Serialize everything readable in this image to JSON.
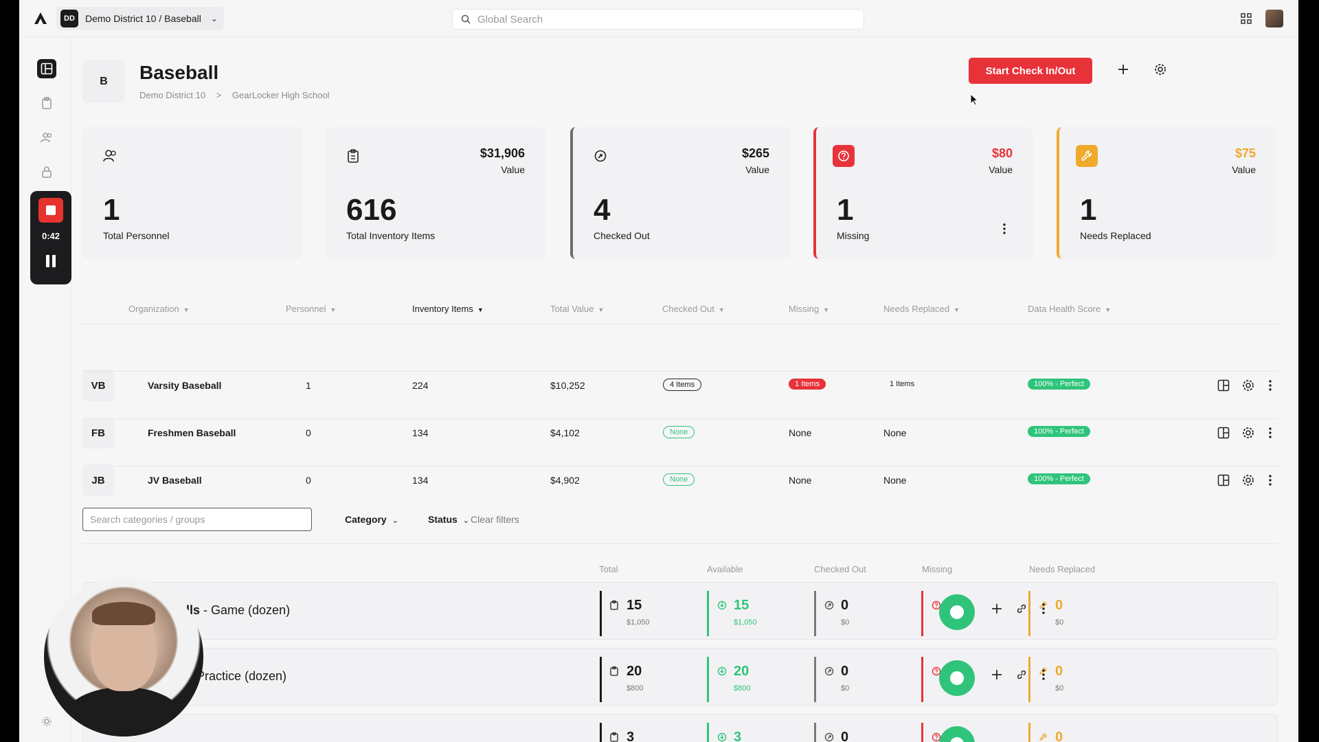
{
  "topbar": {
    "district_badge": "DD",
    "district_label": "Demo District 10 / Baseball",
    "search_placeholder": "Global Search"
  },
  "recorder": {
    "time": "0:42"
  },
  "header": {
    "badge": "B",
    "title": "Baseball",
    "breadcrumb": [
      "Demo District 10",
      ">",
      "GearLocker High School"
    ],
    "start_button": "Start Check In/Out"
  },
  "stats": [
    {
      "number": "1",
      "label": "Total Personnel"
    },
    {
      "number": "616",
      "label": "Total Inventory Items",
      "value": "$31,906",
      "value_label": "Value"
    },
    {
      "number": "4",
      "label": "Checked Out",
      "value": "$265",
      "value_label": "Value"
    },
    {
      "number": "1",
      "label": "Missing",
      "value": "$80",
      "value_label": "Value"
    },
    {
      "number": "1",
      "label": "Needs Replaced",
      "value": "$75",
      "value_label": "Value"
    }
  ],
  "org_table": {
    "headers": [
      "Organization",
      "Personnel",
      "Inventory Items",
      "Total Value",
      "Checked Out",
      "Missing",
      "Needs Replaced",
      "Data Health Score"
    ],
    "rows": [
      {
        "abbr": "VB",
        "name": "Varsity Baseball",
        "personnel": "1",
        "items": "224",
        "value": "$10,252",
        "checked_out": "4 Items",
        "missing": "1 Items",
        "needs_replaced": "1 Items",
        "health": "100% - Perfect"
      },
      {
        "abbr": "FB",
        "name": "Freshmen Baseball",
        "personnel": "0",
        "items": "134",
        "value": "$4,102",
        "checked_out": "None",
        "missing": "None",
        "needs_replaced": "None",
        "health": "100% - Perfect"
      },
      {
        "abbr": "JB",
        "name": "JV Baseball",
        "personnel": "0",
        "items": "134",
        "value": "$4,902",
        "checked_out": "None",
        "missing": "None",
        "needs_replaced": "None",
        "health": "100% - Perfect"
      }
    ]
  },
  "filters": {
    "search_placeholder": "Search categories / groups",
    "category": "Category",
    "status": "Status",
    "clear": "Clear filters"
  },
  "category_table": {
    "headers": [
      "Total",
      "Available",
      "Checked Out",
      "Missing",
      "Needs Replaced"
    ],
    "rows": [
      {
        "name_bold": "alls",
        "name_rest": " - Game (dozen)",
        "total": "15",
        "total_v": "$1,050",
        "avail": "15",
        "avail_v": "$1,050",
        "out": "0",
        "out_v": "$0",
        "missing": "0",
        "missing_v": "$0",
        "replace": "0",
        "replace_v": "$0"
      },
      {
        "name_bold": "",
        "name_rest": "s - Practice (dozen)",
        "total": "20",
        "total_v": "$800",
        "avail": "20",
        "avail_v": "$800",
        "out": "0",
        "out_v": "$0",
        "missing": "0",
        "missing_v": "$0",
        "replace": "0",
        "replace_v": "$0"
      },
      {
        "name_bold": "",
        "name_rest": "",
        "total": "3",
        "total_v": "",
        "avail": "3",
        "avail_v": "",
        "out": "0",
        "out_v": "",
        "missing": "0",
        "missing_v": "",
        "replace": "0",
        "replace_v": ""
      }
    ]
  },
  "colors": {
    "accent_red": "#e8323a",
    "green": "#2fc47a",
    "yellow": "#f0a92d"
  }
}
